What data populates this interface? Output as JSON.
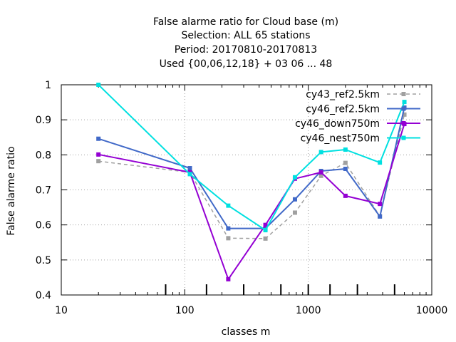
{
  "chart_data": {
    "type": "line",
    "title_lines": [
      "False alarme ratio  for Cloud base (m)",
      "Selection: ALL     65 stations",
      "Period: 20170810-20170813",
      "Used {00,06,12,18} + 03 06 ... 48"
    ],
    "xlabel": "classes m",
    "ylabel": "False alarme ratio",
    "x_scale": "log",
    "xlim": [
      10,
      10000
    ],
    "ylim": [
      0.4,
      1.0
    ],
    "x_ticks": [
      10,
      100,
      1000,
      10000
    ],
    "x_tick_labels": [
      "10",
      "100",
      "1000",
      "10000"
    ],
    "y_ticks": [
      0.4,
      0.5,
      0.6,
      0.7,
      0.8,
      0.9,
      1.0
    ],
    "y_tick_labels": [
      "0.4",
      "0.5",
      "0.6",
      "0.7",
      "0.8",
      "0.9",
      "1"
    ],
    "grid": true,
    "legend_position": "top-right",
    "class_marks": [
      70,
      150,
      300,
      600,
      1000,
      1500,
      2500,
      5000
    ],
    "series": [
      {
        "name": "cy43_ref2.5km",
        "color": "#a0a0a0",
        "dashed": true,
        "x": [
          20,
          110,
          225,
          450,
          780,
          1270,
          2000,
          3800,
          6000
        ],
        "y": [
          0.782,
          0.75,
          0.562,
          0.561,
          0.635,
          0.74,
          0.777,
          0.625,
          0.915
        ]
      },
      {
        "name": "cy46_ref2.5km",
        "color": "#4169c8",
        "dashed": false,
        "x": [
          20,
          110,
          225,
          450,
          780,
          1270,
          2000,
          3800,
          6000
        ],
        "y": [
          0.846,
          0.762,
          0.59,
          0.59,
          0.673,
          0.754,
          0.76,
          0.624,
          0.935
        ]
      },
      {
        "name": "cy46_down750m",
        "color": "#9400d3",
        "dashed": false,
        "x": [
          20,
          110,
          225,
          450,
          780,
          1270,
          2000,
          3800,
          6000
        ],
        "y": [
          0.801,
          0.75,
          0.445,
          0.6,
          0.732,
          0.75,
          0.683,
          0.66,
          0.888
        ]
      },
      {
        "name": "cy46_nest750m",
        "color": "#00e0e0",
        "dashed": false,
        "x": [
          20,
          110,
          225,
          450,
          780,
          1270,
          2000,
          3800,
          6000
        ],
        "y": [
          1.0,
          0.745,
          0.655,
          0.585,
          0.736,
          0.808,
          0.815,
          0.778,
          0.951
        ]
      }
    ]
  }
}
